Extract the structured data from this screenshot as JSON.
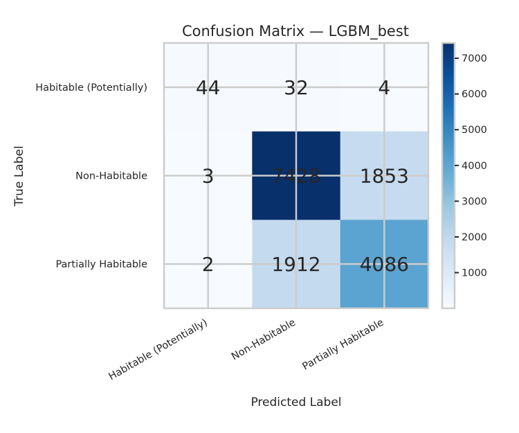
{
  "chart_data": {
    "type": "heatmap",
    "title": "Confusion Matrix — LGBM_best",
    "xlabel": "Predicted Label",
    "ylabel": "True Label",
    "row_labels": [
      "Habitable (Potentially)",
      "Non-Habitable",
      "Partially Habitable"
    ],
    "col_labels": [
      "Habitable (Potentially)",
      "Non-Habitable",
      "Partially Habitable"
    ],
    "values": [
      [
        44,
        32,
        4
      ],
      [
        3,
        7428,
        1853
      ],
      [
        2,
        1912,
        4086
      ]
    ],
    "colorbar": {
      "min": 2,
      "max": 7428,
      "ticks": [
        1000,
        2000,
        3000,
        4000,
        5000,
        6000,
        7000
      ],
      "colormap": "Blues"
    },
    "grid": true
  }
}
